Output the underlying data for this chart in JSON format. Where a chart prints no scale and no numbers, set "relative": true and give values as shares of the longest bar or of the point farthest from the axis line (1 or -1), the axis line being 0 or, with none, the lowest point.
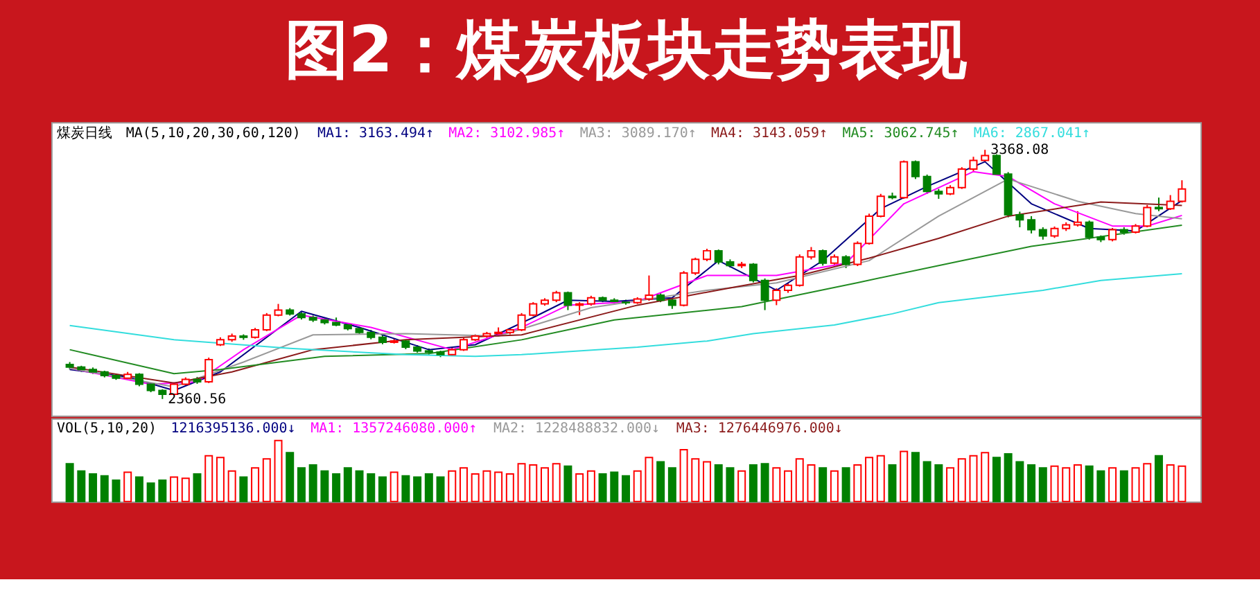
{
  "chart_data": [
    {
      "type": "candlestick",
      "title": "图2：煤炭板块走势表现",
      "categories": [
        null,
        null,
        null,
        null,
        null,
        null,
        null,
        null,
        null,
        null,
        null,
        null,
        null,
        null,
        null,
        null,
        null,
        null,
        null,
        null,
        null,
        null,
        null,
        null,
        null,
        null,
        null,
        null,
        null,
        null,
        null,
        null,
        null,
        null,
        null,
        null,
        null,
        null,
        null,
        null,
        null,
        null,
        null,
        null,
        null,
        null,
        null,
        null,
        null,
        null,
        null,
        null,
        null,
        null,
        null,
        null,
        null,
        null,
        null,
        null,
        null,
        null,
        null,
        null,
        null,
        null,
        null,
        null,
        null,
        null,
        null,
        null,
        null,
        null,
        null,
        null,
        null,
        null,
        null,
        null,
        null,
        null,
        null,
        null,
        null,
        null,
        null,
        null,
        null,
        null,
        null,
        null,
        null,
        null,
        null,
        null,
        null
      ],
      "ohlc": [
        [
          2500,
          2510,
          2480,
          2490
        ],
        [
          2490,
          2495,
          2470,
          2480
        ],
        [
          2480,
          2488,
          2462,
          2470
        ],
        [
          2470,
          2475,
          2448,
          2455
        ],
        [
          2455,
          2462,
          2438,
          2445
        ],
        [
          2445,
          2470,
          2440,
          2460
        ],
        [
          2460,
          2465,
          2412,
          2420
        ],
        [
          2420,
          2425,
          2388,
          2395
        ],
        [
          2395,
          2400,
          2360.56,
          2380
        ],
        [
          2380,
          2428,
          2375,
          2420
        ],
        [
          2420,
          2448,
          2415,
          2440
        ],
        [
          2440,
          2450,
          2422,
          2430
        ],
        [
          2430,
          2528,
          2425,
          2520
        ],
        [
          2580,
          2610,
          2575,
          2600
        ],
        [
          2600,
          2625,
          2592,
          2615
        ],
        [
          2615,
          2622,
          2600,
          2610
        ],
        [
          2610,
          2648,
          2605,
          2640
        ],
        [
          2640,
          2708,
          2635,
          2700
        ],
        [
          2700,
          2745,
          2695,
          2720
        ],
        [
          2720,
          2728,
          2698,
          2705
        ],
        [
          2705,
          2712,
          2682,
          2690
        ],
        [
          2690,
          2698,
          2672,
          2680
        ],
        [
          2680,
          2688,
          2662,
          2670
        ],
        [
          2670,
          2690,
          2655,
          2660
        ],
        [
          2660,
          2668,
          2638,
          2645
        ],
        [
          2645,
          2652,
          2622,
          2630
        ],
        [
          2630,
          2640,
          2602,
          2610
        ],
        [
          2610,
          2618,
          2582,
          2590
        ],
        [
          2590,
          2605,
          2585,
          2595
        ],
        [
          2595,
          2600,
          2562,
          2570
        ],
        [
          2570,
          2578,
          2548,
          2555
        ],
        [
          2555,
          2565,
          2540,
          2550
        ],
        [
          2550,
          2556,
          2530,
          2540
        ],
        [
          2540,
          2568,
          2535,
          2560
        ],
        [
          2560,
          2608,
          2555,
          2600
        ],
        [
          2600,
          2622,
          2595,
          2615
        ],
        [
          2615,
          2632,
          2608,
          2625
        ],
        [
          2625,
          2650,
          2615,
          2630
        ],
        [
          2630,
          2648,
          2622,
          2640
        ],
        [
          2640,
          2708,
          2635,
          2700
        ],
        [
          2700,
          2752,
          2695,
          2745
        ],
        [
          2745,
          2768,
          2738,
          2760
        ],
        [
          2760,
          2798,
          2752,
          2790
        ],
        [
          2790,
          2795,
          2720,
          2740
        ],
        [
          2740,
          2752,
          2700,
          2745
        ],
        [
          2745,
          2778,
          2738,
          2770
        ],
        [
          2770,
          2775,
          2752,
          2760
        ],
        [
          2760,
          2768,
          2748,
          2755
        ],
        [
          2752,
          2762,
          2742,
          2750
        ],
        [
          2750,
          2772,
          2745,
          2765
        ],
        [
          2765,
          2860,
          2758,
          2780
        ],
        [
          2780,
          2790,
          2752,
          2760
        ],
        [
          2760,
          2770,
          2725,
          2740
        ],
        [
          2740,
          2878,
          2735,
          2870
        ],
        [
          2870,
          2932,
          2862,
          2925
        ],
        [
          2925,
          2968,
          2918,
          2960
        ],
        [
          2960,
          2965,
          2905,
          2915
        ],
        [
          2915,
          2925,
          2892,
          2900
        ],
        [
          2900,
          2915,
          2890,
          2905
        ],
        [
          2905,
          2910,
          2832,
          2840
        ],
        [
          2840,
          2848,
          2720,
          2760
        ],
        [
          2760,
          2808,
          2740,
          2800
        ],
        [
          2800,
          2830,
          2790,
          2820
        ],
        [
          2820,
          2945,
          2815,
          2935
        ],
        [
          2935,
          2975,
          2925,
          2960
        ],
        [
          2960,
          2965,
          2900,
          2910
        ],
        [
          2910,
          2945,
          2900,
          2935
        ],
        [
          2935,
          2942,
          2890,
          2905
        ],
        [
          2905,
          2998,
          2898,
          2990
        ],
        [
          2990,
          3110,
          2985,
          3100
        ],
        [
          3100,
          3190,
          3095,
          3180
        ],
        [
          3180,
          3195,
          3168,
          3175
        ],
        [
          3175,
          3325,
          3170,
          3320
        ],
        [
          3320,
          3325,
          3250,
          3260
        ],
        [
          3260,
          3268,
          3190,
          3200
        ],
        [
          3200,
          3210,
          3170,
          3190
        ],
        [
          3190,
          3225,
          3185,
          3215
        ],
        [
          3215,
          3298,
          3210,
          3290
        ],
        [
          3290,
          3340,
          3282,
          3325
        ],
        [
          3325,
          3368.08,
          3318,
          3345
        ],
        [
          3345,
          3350,
          3265,
          3270
        ],
        [
          3270,
          3278,
          3095,
          3105
        ],
        [
          3105,
          3118,
          3055,
          3085
        ],
        [
          3085,
          3100,
          3030,
          3045
        ],
        [
          3045,
          3055,
          3005,
          3020
        ],
        [
          3020,
          3058,
          3012,
          3050
        ],
        [
          3050,
          3075,
          3040,
          3065
        ],
        [
          3065,
          3120,
          3058,
          3075
        ],
        [
          3075,
          3082,
          3005,
          3015
        ],
        [
          3015,
          3022,
          2995,
          3005
        ],
        [
          3005,
          3052,
          2998,
          3045
        ],
        [
          3045,
          3055,
          3025,
          3035
        ],
        [
          3035,
          3068,
          3030,
          3060
        ],
        [
          3060,
          3145,
          3055,
          3135
        ],
        [
          3135,
          3175,
          3120,
          3130
        ],
        [
          3130,
          3185,
          3125,
          3160
        ],
        [
          3160,
          3245,
          3155,
          3210
        ]
      ],
      "series": [
        {
          "type": "line",
          "color": "#000080",
          "values": [
            2480,
            null,
            null,
            null,
            null,
            2450,
            null,
            null,
            null,
            2395,
            null,
            null,
            null,
            2470,
            null,
            null,
            null,
            2610,
            null,
            null,
            2715,
            null,
            null,
            null,
            null,
            2650,
            null,
            null,
            null,
            null,
            null,
            2560,
            null,
            null,
            null,
            2580,
            null,
            null,
            null,
            null,
            2690,
            null,
            null,
            2760,
            null,
            null,
            null,
            2755,
            null,
            null,
            null,
            null,
            2770,
            null,
            null,
            null,
            2920,
            null,
            null,
            null,
            null,
            2800,
            null,
            null,
            null,
            2920,
            null,
            null,
            null,
            null,
            3130,
            null,
            null,
            null,
            3220,
            null,
            null,
            null,
            null,
            3320,
            null,
            null,
            null,
            3150,
            null,
            null,
            null,
            null,
            3050,
            null,
            null,
            null,
            3040,
            null,
            null,
            null,
            3163
          ]
        },
        {
          "type": "line",
          "color": "#ff00ff",
          "values": [
            2485,
            null,
            null,
            null,
            null,
            null,
            null,
            2420,
            null,
            null,
            null,
            2430,
            null,
            null,
            null,
            2560,
            null,
            null,
            null,
            null,
            2700,
            null,
            null,
            null,
            null,
            null,
            2650,
            null,
            null,
            null,
            null,
            null,
            null,
            2560,
            null,
            null,
            null,
            null,
            null,
            2650,
            null,
            null,
            null,
            2740,
            null,
            null,
            null,
            null,
            null,
            2755,
            null,
            null,
            null,
            null,
            null,
            2860,
            null,
            null,
            null,
            null,
            null,
            2860,
            null,
            null,
            null,
            null,
            null,
            2910,
            null,
            null,
            null,
            null,
            3150,
            null,
            null,
            null,
            null,
            null,
            3280,
            null,
            null,
            3260,
            null,
            null,
            null,
            3150,
            null,
            null,
            null,
            null,
            3060,
            null,
            null,
            3060,
            null,
            null,
            3103
          ]
        },
        {
          "type": "line",
          "color": "#999999",
          "values": [
            2485,
            null,
            null,
            null,
            null,
            null,
            null,
            null,
            null,
            2410,
            null,
            null,
            null,
            null,
            null,
            2510,
            null,
            null,
            null,
            null,
            null,
            2620,
            null,
            null,
            null,
            null,
            null,
            null,
            null,
            2625,
            null,
            null,
            null,
            null,
            null,
            null,
            null,
            2615,
            null,
            null,
            null,
            null,
            null,
            null,
            null,
            2730,
            null,
            null,
            null,
            null,
            null,
            null,
            null,
            null,
            null,
            2800,
            null,
            null,
            null,
            null,
            null,
            2830,
            null,
            null,
            null,
            null,
            null,
            null,
            null,
            2920,
            null,
            null,
            null,
            null,
            null,
            3100,
            null,
            null,
            null,
            null,
            null,
            3250,
            null,
            null,
            null,
            null,
            null,
            3160,
            null,
            null,
            null,
            null,
            3110,
            null,
            null,
            null,
            3089
          ]
        },
        {
          "type": "line",
          "color": "#8b1a1a",
          "values": [
            2490,
            null,
            null,
            null,
            null,
            null,
            null,
            null,
            null,
            2425,
            null,
            null,
            null,
            null,
            2470,
            null,
            null,
            null,
            null,
            null,
            null,
            2560,
            null,
            null,
            null,
            null,
            null,
            null,
            null,
            2600,
            null,
            null,
            null,
            null,
            null,
            null,
            null,
            null,
            null,
            2620,
            null,
            null,
            null,
            null,
            null,
            null,
            null,
            null,
            null,
            2740,
            null,
            null,
            null,
            null,
            null,
            null,
            null,
            2810,
            null,
            null,
            null,
            null,
            null,
            2860,
            null,
            null,
            null,
            null,
            null,
            2930,
            null,
            null,
            null,
            null,
            null,
            3010,
            null,
            null,
            null,
            null,
            null,
            3100,
            null,
            null,
            null,
            null,
            null,
            null,
            null,
            3157,
            null,
            null,
            null,
            null,
            null,
            null,
            3143
          ]
        },
        {
          "type": "line",
          "color": "#228b22",
          "values": [
            2560,
            null,
            null,
            null,
            null,
            null,
            null,
            null,
            null,
            2463,
            null,
            null,
            null,
            2480,
            null,
            null,
            null,
            null,
            null,
            null,
            null,
            null,
            2533,
            null,
            null,
            null,
            null,
            null,
            null,
            null,
            null,
            2544,
            null,
            null,
            null,
            null,
            null,
            null,
            null,
            2600,
            null,
            null,
            null,
            null,
            null,
            null,
            null,
            2680,
            null,
            null,
            null,
            null,
            null,
            null,
            null,
            null,
            null,
            null,
            2734,
            null,
            null,
            null,
            null,
            null,
            null,
            null,
            null,
            null,
            2831,
            null,
            null,
            null,
            null,
            null,
            null,
            null,
            null,
            2920,
            null,
            null,
            null,
            null,
            null,
            2978,
            null,
            null,
            null,
            null,
            null,
            null,
            null,
            null,
            null,
            null,
            null,
            null,
            3063
          ]
        },
        {
          "type": "line",
          "color": "#33dddd",
          "values": [
            2658,
            null,
            null,
            null,
            null,
            null,
            null,
            null,
            null,
            2600,
            null,
            null,
            null,
            null,
            null,
            null,
            null,
            null,
            null,
            2565,
            null,
            null,
            null,
            null,
            null,
            null,
            null,
            null,
            null,
            2540,
            null,
            null,
            null,
            null,
            null,
            2533,
            null,
            null,
            null,
            2540,
            null,
            null,
            null,
            null,
            null,
            null,
            null,
            null,
            null,
            2570,
            null,
            null,
            null,
            null,
            null,
            2595,
            null,
            null,
            null,
            2625,
            null,
            null,
            null,
            null,
            null,
            null,
            2660,
            null,
            null,
            null,
            null,
            2705,
            null,
            null,
            null,
            2750,
            null,
            null,
            null,
            null,
            null,
            null,
            null,
            null,
            2800,
            null,
            null,
            null,
            null,
            2840,
            null,
            null,
            null,
            null,
            null,
            null,
            2867
          ]
        }
      ],
      "annotations": [
        "煤炭日线",
        "MA(5,10,20,30,60,120)",
        "MA1: 3163.494↑",
        "MA2: 3102.985↑",
        "MA3: 3089.170↑",
        "MA4: 3143.059↑",
        "MA5: 3062.745↑",
        "MA6: 2867.041↑",
        "3368.08",
        "2360.56"
      ]
    },
    {
      "type": "bar",
      "relative": true,
      "categories": [
        null,
        null,
        null,
        null,
        null,
        null,
        null,
        null,
        null,
        null,
        null,
        null,
        null,
        null,
        null,
        null,
        null,
        null,
        null,
        null,
        null,
        null,
        null,
        null,
        null,
        null,
        null,
        null,
        null,
        null,
        null,
        null,
        null,
        null,
        null,
        null,
        null,
        null,
        null,
        null,
        null,
        null,
        null,
        null,
        null,
        null,
        null,
        null,
        null,
        null,
        null,
        null,
        null,
        null,
        null,
        null,
        null,
        null,
        null,
        null,
        null,
        null,
        null,
        null,
        null,
        null,
        null,
        null,
        null,
        null,
        null,
        null,
        null,
        null,
        null,
        null,
        null,
        null,
        null,
        null,
        null,
        null,
        null,
        null,
        null,
        null,
        null,
        null,
        null,
        null,
        null,
        null,
        null,
        null,
        null,
        null,
        null
      ],
      "values": [
        0.62,
        0.5,
        0.45,
        0.42,
        0.35,
        0.48,
        0.4,
        0.3,
        0.35,
        0.4,
        0.38,
        0.45,
        0.75,
        0.72,
        0.5,
        0.4,
        0.55,
        0.7,
        1,
        0.8,
        0.55,
        0.6,
        0.5,
        0.45,
        0.55,
        0.5,
        0.45,
        0.4,
        0.48,
        0.42,
        0.4,
        0.45,
        0.4,
        0.5,
        0.55,
        0.45,
        0.5,
        0.48,
        0.45,
        0.62,
        0.6,
        0.55,
        0.62,
        0.58,
        0.45,
        0.5,
        0.45,
        0.48,
        0.42,
        0.5,
        0.72,
        0.65,
        0.55,
        0.85,
        0.7,
        0.65,
        0.6,
        0.55,
        0.5,
        0.6,
        0.62,
        0.55,
        0.5,
        0.7,
        0.6,
        0.55,
        0.5,
        0.55,
        0.6,
        0.72,
        0.75,
        0.6,
        0.82,
        0.8,
        0.65,
        0.6,
        0.55,
        0.7,
        0.75,
        0.8,
        0.72,
        0.78,
        0.65,
        0.6,
        0.55,
        0.58,
        0.55,
        0.6,
        0.58,
        0.5,
        0.55,
        0.5,
        0.55,
        0.62,
        0.75,
        0.6,
        0.58
      ],
      "colors": [
        "#008000",
        "#008000",
        "#008000",
        "#008000",
        "#008000",
        "#ff0000",
        "#008000",
        "#008000",
        "#008000",
        "#ff0000",
        "#ff0000",
        "#008000",
        "#ff0000",
        "#ff0000",
        "#ff0000",
        "#008000",
        "#ff0000",
        "#ff0000",
        "#ff0000",
        "#008000",
        "#008000",
        "#008000",
        "#008000",
        "#008000",
        "#008000",
        "#008000",
        "#008000",
        "#008000",
        "#ff0000",
        "#008000",
        "#008000",
        "#008000",
        "#008000",
        "#ff0000",
        "#ff0000",
        "#ff0000",
        "#ff0000",
        "#ff0000",
        "#ff0000",
        "#ff0000",
        "#ff0000",
        "#ff0000",
        "#ff0000",
        "#008000",
        "#ff0000",
        "#ff0000",
        "#008000",
        "#008000",
        "#008000",
        "#ff0000",
        "#ff0000",
        "#008000",
        "#008000",
        "#ff0000",
        "#ff0000",
        "#ff0000",
        "#008000",
        "#008000",
        "#ff0000",
        "#008000",
        "#008000",
        "#ff0000",
        "#ff0000",
        "#ff0000",
        "#ff0000",
        "#008000",
        "#ff0000",
        "#008000",
        "#ff0000",
        "#ff0000",
        "#ff0000",
        "#008000",
        "#ff0000",
        "#008000",
        "#008000",
        "#008000",
        "#ff0000",
        "#ff0000",
        "#ff0000",
        "#ff0000",
        "#008000",
        "#008000",
        "#008000",
        "#008000",
        "#008000",
        "#ff0000",
        "#ff0000",
        "#ff0000",
        "#008000",
        "#008000",
        "#ff0000",
        "#008000",
        "#ff0000",
        "#ff0000",
        "#008000",
        "#ff0000",
        "#ff0000"
      ],
      "annotations": [
        "VOL(5,10,20)",
        "1216395136.000↓",
        "MA1: 1357246080.000↑",
        "MA2: 1228488832.000↓",
        "MA3: 1276446976.000↓"
      ]
    }
  ]
}
